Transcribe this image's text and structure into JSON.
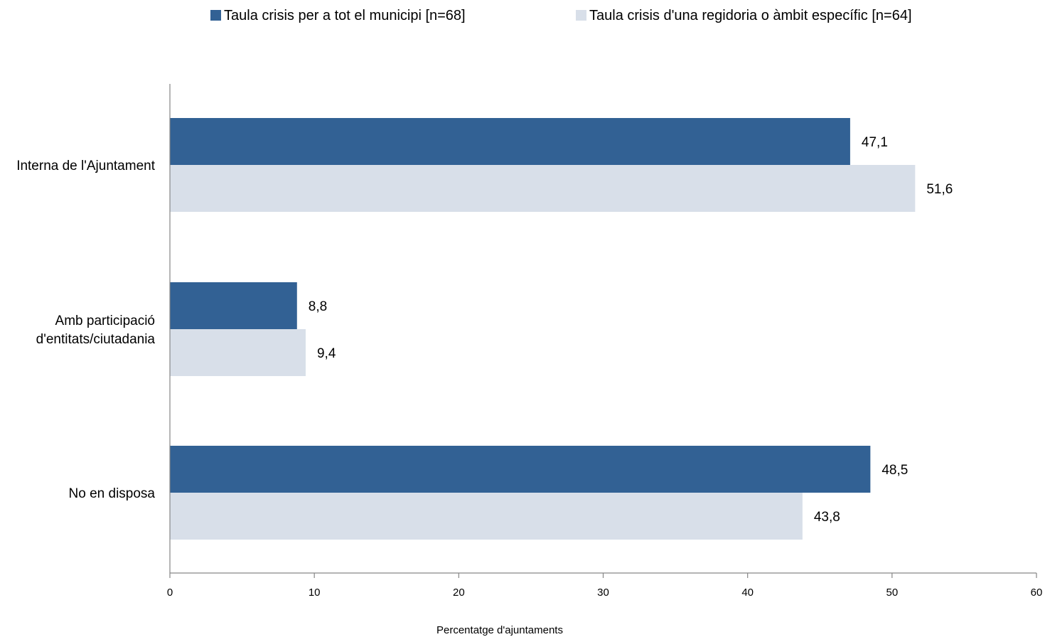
{
  "chart_data": {
    "type": "bar",
    "orientation": "horizontal",
    "categories": [
      "Interna de l'Ajuntament",
      "Amb participació d'entitats/ciutadania",
      "No en disposa"
    ],
    "category_lines": [
      [
        "Interna de l'Ajuntament"
      ],
      [
        "Amb participació",
        "d'entitats/ciutadania"
      ],
      [
        "No en disposa"
      ]
    ],
    "series": [
      {
        "name": "Taula crisis per a tot el municipi [n=68]",
        "values": [
          47.1,
          8.8,
          48.5
        ],
        "labels": [
          "47,1",
          "8,8",
          "48,5"
        ],
        "color": "#326194"
      },
      {
        "name": "Taula crisis d'una regidoria o àmbit específic  [n=64]",
        "values": [
          51.6,
          9.4,
          43.8
        ],
        "labels": [
          "51,6",
          "9,4",
          "43,8"
        ],
        "color": "#d8dfe9"
      }
    ],
    "xlabel": "Percentatge d'ajuntaments",
    "ylabel": "",
    "xlim": [
      0,
      60
    ],
    "xticks": [
      "0",
      "10",
      "20",
      "30",
      "40",
      "50",
      "60"
    ],
    "grid": false,
    "legend_position": "top"
  }
}
